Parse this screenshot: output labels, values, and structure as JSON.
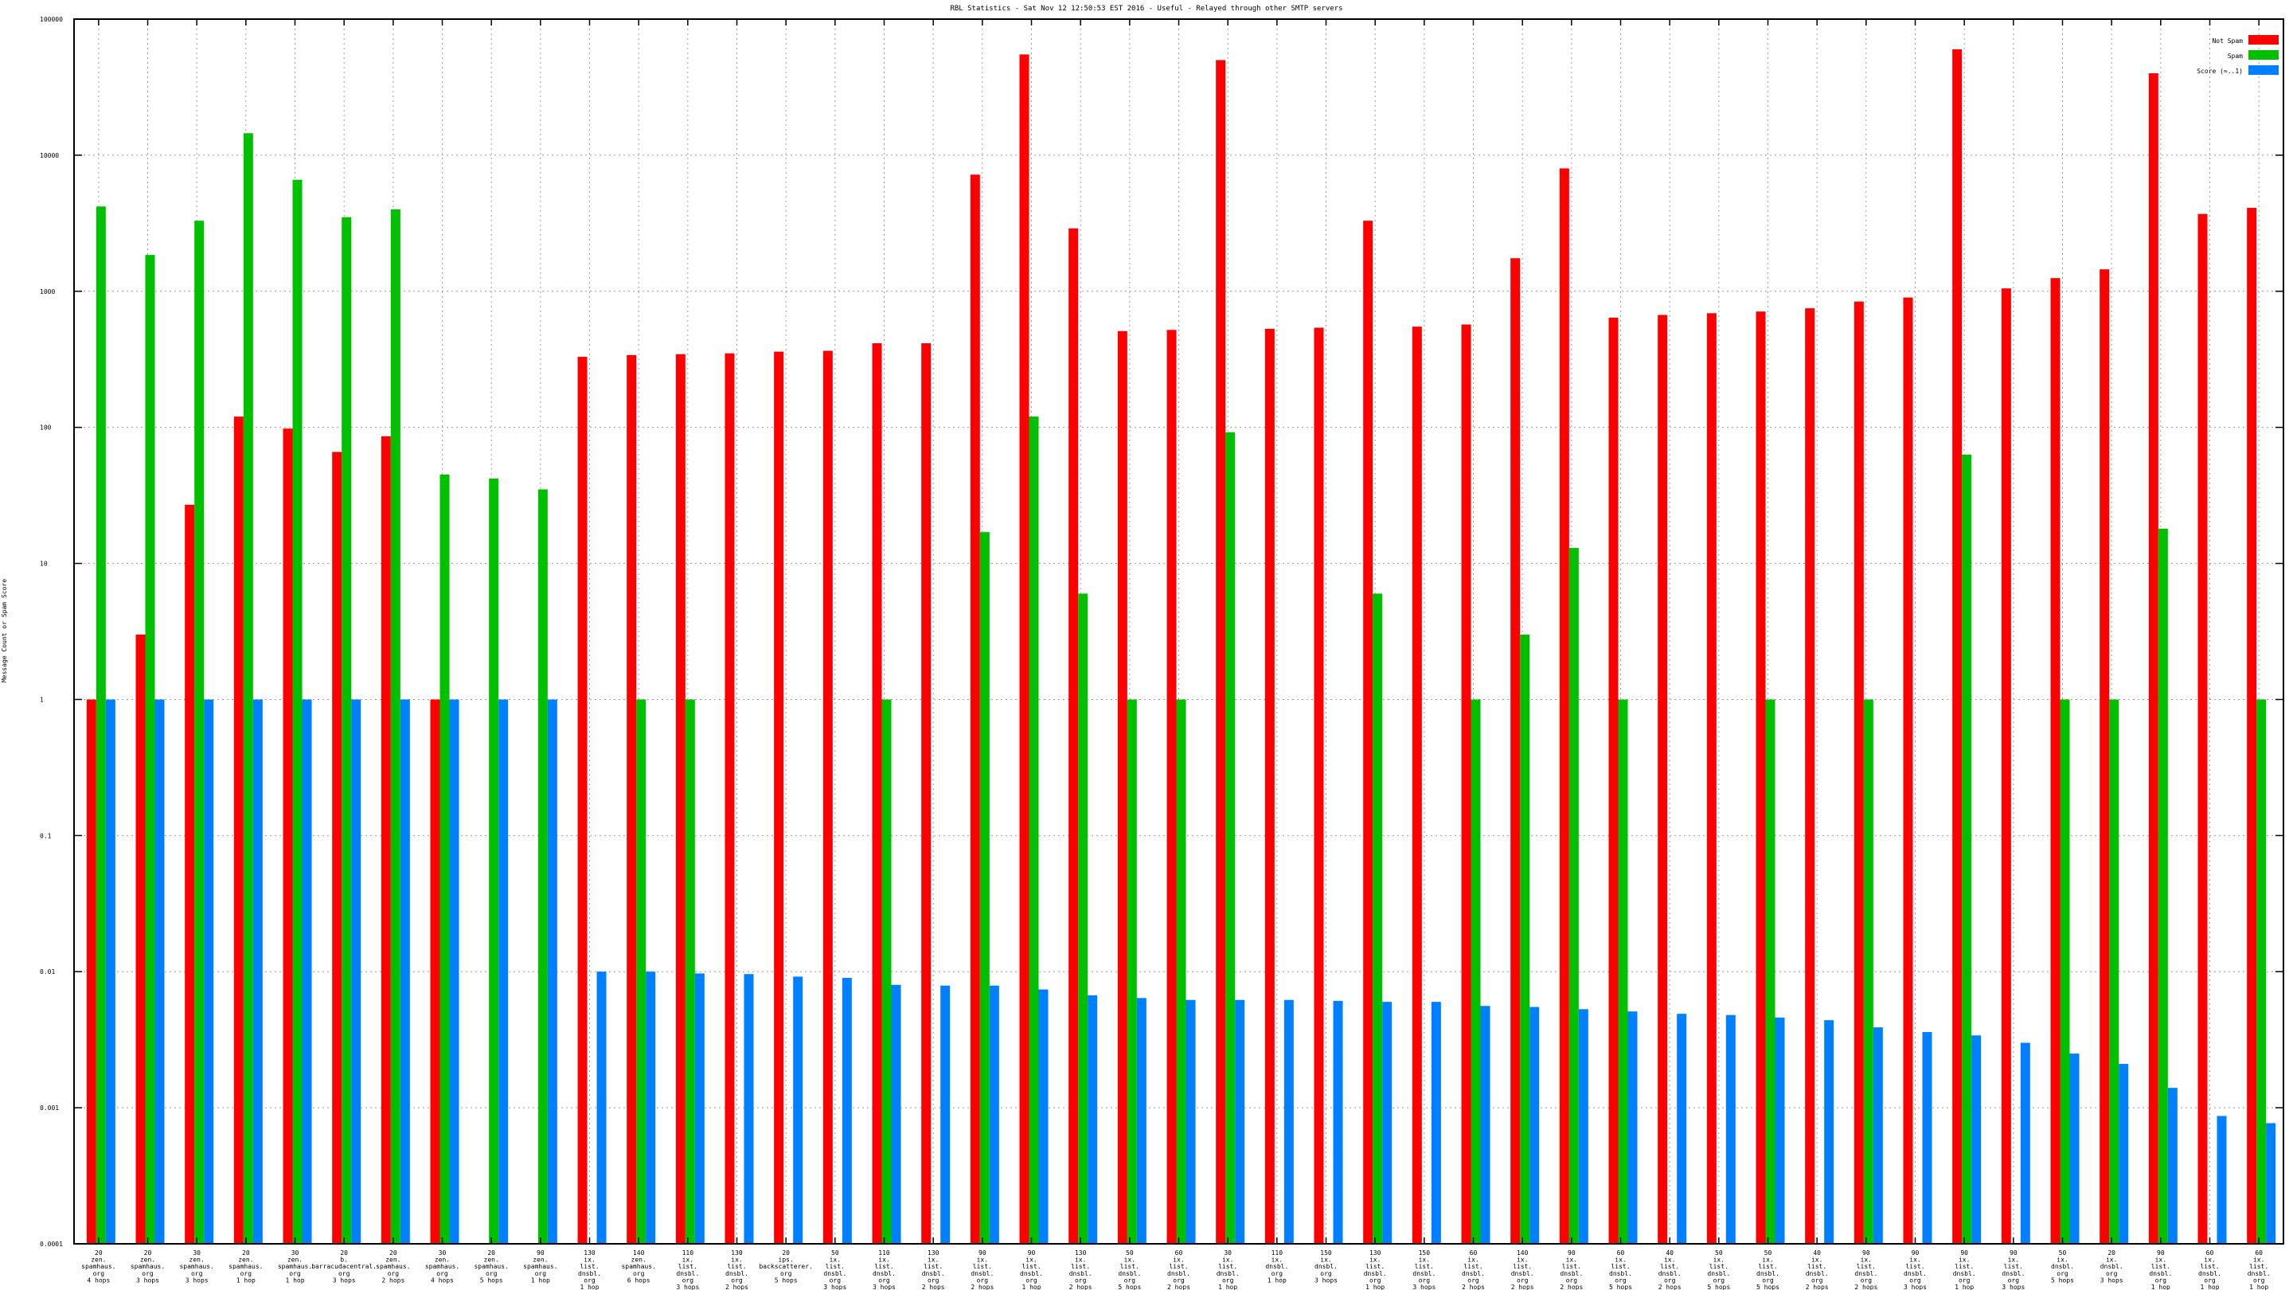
{
  "chart_data": {
    "type": "bar",
    "title": "RBL Statistics - Sat Nov 12 12:50:53 EST 2016 - Useful - Relayed through other SMTP servers",
    "ylabel": "Message Count or Spam Score",
    "xlabel": "",
    "y_scale": "log",
    "ylim": [
      0.0001,
      100000
    ],
    "y_ticks": [
      "0.0001",
      "0.001",
      "0.01",
      "0.1",
      "1",
      "10",
      "100",
      "1000",
      "10000",
      "100000"
    ],
    "grid": true,
    "legend_position": "top-right",
    "categories": [
      [
        "20",
        "zen.",
        "spamhaus.",
        "org",
        "4 hops"
      ],
      [
        "20",
        "zen.",
        "spamhaus.",
        "org",
        "3 hops"
      ],
      [
        "30",
        "zen.",
        "spamhaus.",
        "org",
        "3 hops"
      ],
      [
        "20",
        "zen.",
        "spamhaus.",
        "org",
        "1 hop"
      ],
      [
        "30",
        "zen.",
        "spamhaus.",
        "org",
        "1 hop"
      ],
      [
        "20",
        "b.",
        "barracudacentral.",
        "org",
        "3 hops"
      ],
      [
        "20",
        "zen.",
        "spamhaus.",
        "org",
        "2 hops"
      ],
      [
        "30",
        "zen.",
        "spamhaus.",
        "org",
        "4 hops"
      ],
      [
        "20",
        "zen.",
        "spamhaus.",
        "org",
        "5 hops"
      ],
      [
        "90",
        "zen.",
        "spamhaus.",
        "org",
        "1 hop"
      ],
      [
        "130",
        "ix.",
        "list.",
        "dnsbl.",
        "org",
        "1 hop"
      ],
      [
        "140",
        "zen.",
        "spamhaus.",
        "org",
        "6 hops"
      ],
      [
        "110",
        "ix.",
        "list.",
        "dnsbl.",
        "org",
        "3 hops"
      ],
      [
        "130",
        "ix.",
        "list.",
        "dnsbl.",
        "org",
        "2 hops"
      ],
      [
        "20",
        "ips.",
        "backscatterer.",
        "org",
        "5 hops"
      ],
      [
        "50",
        "ix.",
        "list.",
        "dnsbl.",
        "org",
        "3 hops"
      ],
      [
        "110",
        "ix.",
        "list.",
        "dnsbl.",
        "org",
        "3 hops"
      ],
      [
        "130",
        "ix.",
        "list.",
        "dnsbl.",
        "org",
        "2 hops"
      ],
      [
        "90",
        "ix.",
        "list.",
        "dnsbl.",
        "org",
        "2 hops"
      ],
      [
        "90",
        "ix.",
        "list.",
        "dnsbl.",
        "org",
        "1 hop"
      ],
      [
        "130",
        "ix.",
        "list.",
        "dnsbl.",
        "org",
        "2 hops"
      ],
      [
        "50",
        "ix.",
        "list.",
        "dnsbl.",
        "org",
        "5 hops"
      ],
      [
        "60",
        "ix.",
        "list.",
        "dnsbl.",
        "org",
        "2 hops"
      ],
      [
        "30",
        "ix.",
        "list.",
        "dnsbl.",
        "org",
        "1 hop"
      ],
      [
        "110",
        "ix.",
        "dnsbl.",
        "org",
        "1 hop"
      ],
      [
        "150",
        "ix.",
        "dnsbl.",
        "org",
        "3 hops"
      ],
      [
        "130",
        "ix.",
        "list.",
        "dnsbl.",
        "org",
        "1 hop"
      ],
      [
        "150",
        "ix.",
        "list.",
        "dnsbl.",
        "org",
        "3 hops"
      ],
      [
        "60",
        "ix.",
        "list.",
        "dnsbl.",
        "org",
        "2 hops"
      ],
      [
        "140",
        "ix.",
        "list.",
        "dnsbl.",
        "org",
        "2 hops"
      ],
      [
        "90",
        "ix.",
        "list.",
        "dnsbl.",
        "org",
        "2 hops"
      ],
      [
        "60",
        "ix.",
        "list.",
        "dnsbl.",
        "org",
        "5 hops"
      ],
      [
        "40",
        "ix.",
        "list.",
        "dnsbl.",
        "org",
        "2 hops"
      ],
      [
        "50",
        "ix.",
        "list.",
        "dnsbl.",
        "org",
        "5 hops"
      ],
      [
        "50",
        "ix.",
        "list.",
        "dnsbl.",
        "org",
        "5 hops"
      ],
      [
        "40",
        "ix.",
        "list.",
        "dnsbl.",
        "org",
        "2 hops"
      ],
      [
        "90",
        "ix.",
        "list.",
        "dnsbl.",
        "org",
        "2 hops"
      ],
      [
        "90",
        "ix.",
        "list.",
        "dnsbl.",
        "org",
        "3 hops"
      ],
      [
        "90",
        "ix.",
        "list.",
        "dnsbl.",
        "org",
        "1 hop"
      ],
      [
        "90",
        "ix.",
        "list.",
        "dnsbl.",
        "org",
        "3 hops"
      ],
      [
        "50",
        "ix.",
        "dnsbl.",
        "org",
        "5 hops"
      ],
      [
        "20",
        "ix.",
        "dnsbl.",
        "org",
        "3 hops"
      ],
      [
        "90",
        "ix.",
        "list.",
        "dnsbl.",
        "org",
        "1 hop"
      ],
      [
        "60",
        "ix.",
        "list.",
        "dnsbl.",
        "org",
        "1 hop"
      ],
      [
        "60",
        "ix.",
        "list.",
        "dnsbl.",
        "org",
        "1 hop"
      ]
    ],
    "series": [
      {
        "name": "Not Spam",
        "color": "#ff0000",
        "values": [
          1,
          3,
          27,
          120,
          98,
          66,
          86,
          1,
          null,
          null,
          330,
          340,
          345,
          350,
          360,
          365,
          415,
          415,
          7200,
          55000,
          2900,
          510,
          520,
          50000,
          530,
          540,
          3300,
          550,
          570,
          1750,
          8000,
          640,
          670,
          690,
          710,
          750,
          840,
          900,
          60000,
          1050,
          1250,
          1450,
          40000,
          3700,
          4100
        ]
      },
      {
        "name": "Spam",
        "color": "#00c000",
        "values": [
          4200,
          1850,
          3300,
          14500,
          6600,
          3500,
          4000,
          45,
          42,
          35,
          null,
          1,
          1,
          null,
          null,
          null,
          1,
          null,
          17,
          120,
          6,
          1,
          1,
          92,
          null,
          null,
          6,
          null,
          1,
          3,
          13,
          1,
          null,
          null,
          1,
          null,
          1,
          null,
          63,
          null,
          1,
          1,
          18,
          null,
          1
        ]
      },
      {
        "name": "Score (≈..1)",
        "color": "#0080ff",
        "values": [
          1,
          1,
          1,
          1,
          1,
          1,
          1,
          1,
          1,
          1,
          0.01,
          0.01,
          0.0097,
          0.0096,
          0.0092,
          0.009,
          0.008,
          0.0079,
          0.0079,
          0.0074,
          0.0067,
          0.0064,
          0.0062,
          0.0062,
          0.0062,
          0.0061,
          0.006,
          0.006,
          0.0056,
          0.0055,
          0.0053,
          0.0051,
          0.0049,
          0.0048,
          0.0046,
          0.0044,
          0.0039,
          0.0036,
          0.0034,
          0.003,
          0.0025,
          0.0021,
          0.0014,
          0.00087,
          0.00077
        ]
      }
    ]
  }
}
